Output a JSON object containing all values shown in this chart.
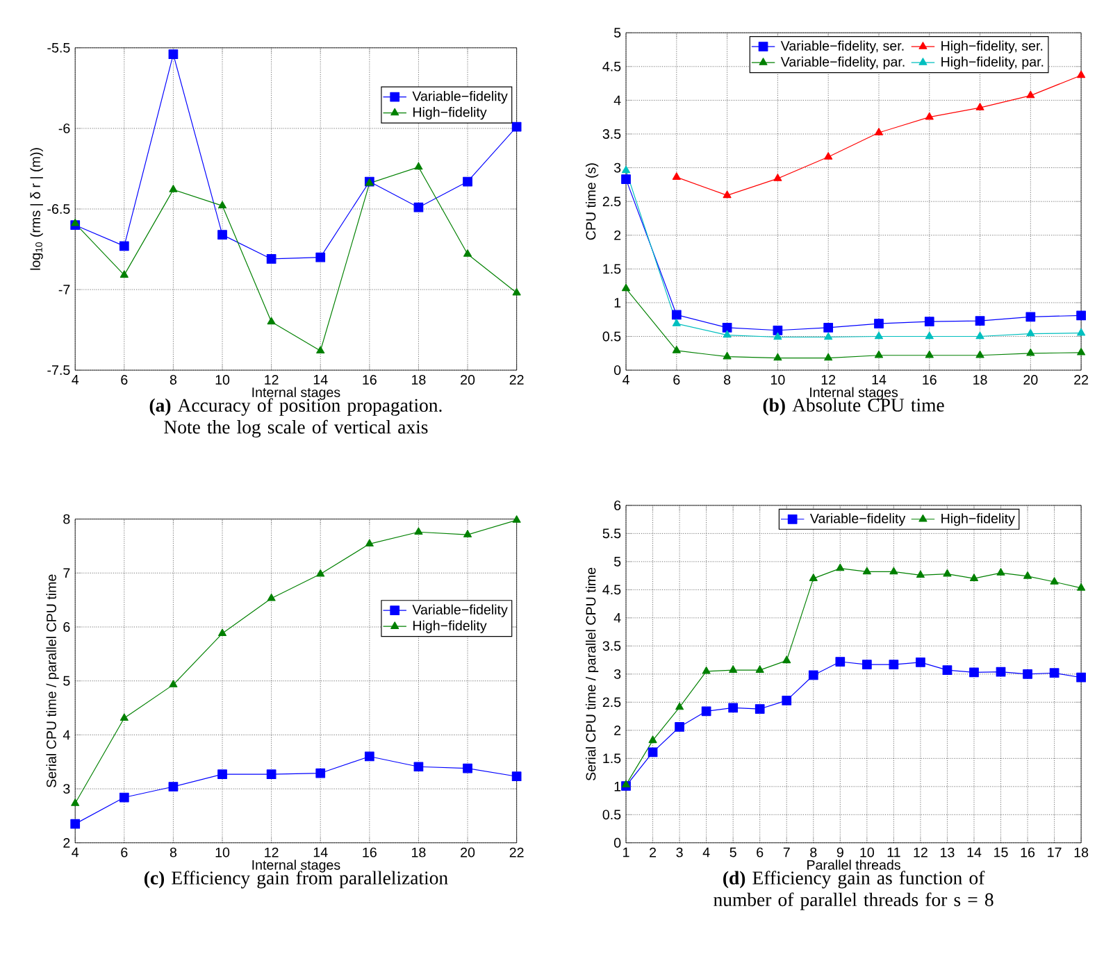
{
  "chart_data": [
    {
      "type": "line",
      "title": "**(a)** Accuracy of position propagation. Note the log scale of vertical axis",
      "xlabel": "Internal stages",
      "ylabel": "log$_{10}$ (rms | δ r | (m))",
      "x": [
        4,
        6,
        8,
        10,
        12,
        14,
        16,
        18,
        20,
        22
      ],
      "xlim": [
        4,
        22
      ],
      "xticks": [
        4,
        6,
        8,
        10,
        12,
        14,
        16,
        18,
        20,
        22
      ],
      "ylim": [
        -7.5,
        -5.5
      ],
      "yticks": [
        -7.5,
        -7,
        -6.5,
        -6,
        -5.5
      ],
      "grid": true,
      "legend": "top right",
      "series": [
        {
          "name": "Variable−fidelity",
          "color": "#0000ff",
          "marker": "square",
          "values": [
            -6.6,
            -6.73,
            -5.54,
            -6.66,
            -6.81,
            -6.8,
            -6.33,
            -6.49,
            -6.33,
            -5.99
          ]
        },
        {
          "name": "High−fidelity",
          "color": "#008000",
          "marker": "triangle",
          "values": [
            -6.59,
            -6.91,
            -6.38,
            -6.48,
            -7.2,
            -7.38,
            -6.34,
            -6.24,
            -6.78,
            -7.02
          ]
        }
      ]
    },
    {
      "type": "line",
      "title": "**(b)** Absolute CPU time",
      "xlabel": "Internal stages",
      "ylabel": "CPU time (s)",
      "x": [
        4,
        6,
        8,
        10,
        12,
        14,
        16,
        18,
        20,
        22
      ],
      "xlim": [
        4,
        22
      ],
      "xticks": [
        4,
        6,
        8,
        10,
        12,
        14,
        16,
        18,
        20,
        22
      ],
      "ylim": [
        0,
        5
      ],
      "yticks": [
        0,
        0.5,
        1,
        1.5,
        2,
        2.5,
        3,
        3.5,
        4,
        4.5,
        5
      ],
      "grid": true,
      "legend": "top",
      "series": [
        {
          "name": "Variable−fidelity, ser.",
          "color": "#0000ff",
          "marker": "square",
          "values": [
            2.83,
            0.82,
            0.63,
            0.59,
            0.63,
            0.69,
            0.72,
            0.73,
            0.79,
            0.81
          ]
        },
        {
          "name": "High−fidelity, ser.",
          "color": "#ff0000",
          "marker": "triangle",
          "values": [
            null,
            2.86,
            2.59,
            2.84,
            3.16,
            3.52,
            3.75,
            3.89,
            4.07,
            4.37
          ]
        },
        {
          "name": "Variable−fidelity, par.",
          "color": "#008000",
          "marker": "triangle",
          "values": [
            1.21,
            0.29,
            0.2,
            0.18,
            0.18,
            0.22,
            0.22,
            0.22,
            0.25,
            0.26
          ]
        },
        {
          "name": "High−fidelity, par.",
          "color": "#00bfbf",
          "marker": "triangle",
          "values": [
            2.96,
            0.69,
            0.52,
            0.49,
            0.49,
            0.5,
            0.5,
            0.5,
            0.54,
            0.55
          ]
        }
      ]
    },
    {
      "type": "line",
      "title": "**(c)** Efficiency gain from parallelization",
      "xlabel": "Internal stages",
      "ylabel": "Serial CPU time / parallel CPU time",
      "x": [
        4,
        6,
        8,
        10,
        12,
        14,
        16,
        18,
        20,
        22
      ],
      "xlim": [
        4,
        22
      ],
      "xticks": [
        4,
        6,
        8,
        10,
        12,
        14,
        16,
        18,
        20,
        22
      ],
      "ylim": [
        2,
        8
      ],
      "yticks": [
        2,
        3,
        4,
        5,
        6,
        7,
        8
      ],
      "grid": true,
      "legend": "right",
      "series": [
        {
          "name": "Variable−fidelity",
          "color": "#0000ff",
          "marker": "square",
          "values": [
            2.35,
            2.84,
            3.04,
            3.27,
            3.27,
            3.29,
            3.6,
            3.41,
            3.38,
            3.23
          ]
        },
        {
          "name": "High−fidelity",
          "color": "#008000",
          "marker": "triangle",
          "values": [
            2.73,
            4.31,
            4.93,
            5.88,
            6.53,
            6.98,
            7.54,
            7.76,
            7.71,
            7.98
          ]
        }
      ]
    },
    {
      "type": "line",
      "title": "**(d)** Efficiency gain as function of number of parallel threads for s = 8",
      "xlabel": "Parallel threads",
      "ylabel": "Serial CPU time / parallel CPU time",
      "x": [
        1,
        2,
        3,
        4,
        5,
        6,
        7,
        8,
        9,
        10,
        11,
        12,
        13,
        14,
        15,
        16,
        17,
        18
      ],
      "xlim": [
        1,
        18
      ],
      "xticks": [
        1,
        2,
        3,
        4,
        5,
        6,
        7,
        8,
        9,
        10,
        11,
        12,
        13,
        14,
        15,
        16,
        17,
        18
      ],
      "ylim": [
        0,
        6
      ],
      "yticks": [
        0,
        0.5,
        1,
        1.5,
        2,
        2.5,
        3,
        3.5,
        4,
        4.5,
        5,
        5.5,
        6
      ],
      "grid": true,
      "legend": "top",
      "series": [
        {
          "name": "Variable−fidelity",
          "color": "#0000ff",
          "marker": "square",
          "values": [
            1.01,
            1.61,
            2.06,
            2.34,
            2.4,
            2.38,
            2.53,
            2.98,
            3.22,
            3.17,
            3.17,
            3.21,
            3.07,
            3.03,
            3.04,
            3.0,
            3.02,
            2.94
          ]
        },
        {
          "name": "High−fidelity",
          "color": "#008000",
          "marker": "triangle",
          "values": [
            1.03,
            1.82,
            2.41,
            3.05,
            3.07,
            3.07,
            3.24,
            4.7,
            4.88,
            4.82,
            4.82,
            4.76,
            4.78,
            4.7,
            4.8,
            4.74,
            4.64,
            4.53
          ]
        }
      ]
    }
  ]
}
